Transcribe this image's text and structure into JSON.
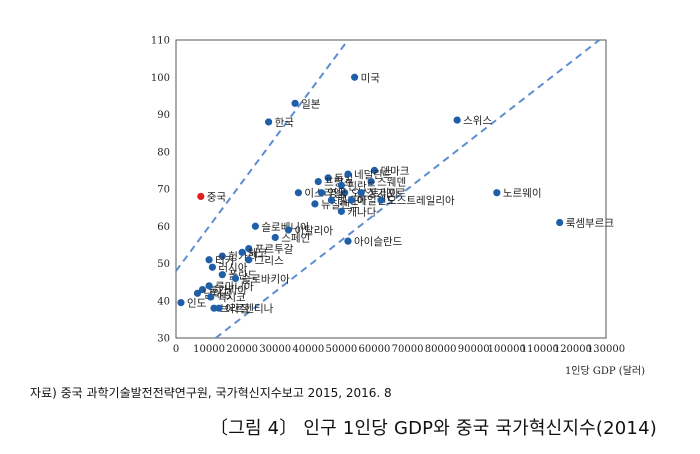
{
  "chart_data": {
    "type": "scatter",
    "xlabel": "1인당 GDP (달러)",
    "ylabel": "",
    "xlim": [
      0,
      130000
    ],
    "ylim": [
      30,
      110
    ],
    "x_ticks": [
      0,
      10000,
      20000,
      30000,
      40000,
      50000,
      60000,
      70000,
      80000,
      90000,
      100000,
      110000,
      120000,
      130000
    ],
    "y_ticks": [
      30,
      40,
      50,
      60,
      70,
      80,
      90,
      100,
      110
    ],
    "highlight_color": "#e02020",
    "point_color": "#1f5fa8",
    "trend_color": "#5b8fd0",
    "trend_lines": [
      {
        "x": [
          0,
          52000
        ],
        "y": [
          48,
          110
        ]
      },
      {
        "x": [
          12000,
          128000
        ],
        "y": [
          30,
          110
        ]
      }
    ],
    "points": [
      {
        "label": "미국",
        "x": 54000,
        "y": 100
      },
      {
        "label": "일본",
        "x": 36000,
        "y": 93
      },
      {
        "label": "한국",
        "x": 28000,
        "y": 88
      },
      {
        "label": "스위스",
        "x": 85000,
        "y": 88.5
      },
      {
        "label": "노르웨이",
        "x": 97000,
        "y": 69
      },
      {
        "label": "룩셈부르크",
        "x": 116000,
        "y": 61
      },
      {
        "label": "중국",
        "x": 7500,
        "y": 68,
        "highlight": true
      },
      {
        "label": "덴마크",
        "x": 60000,
        "y": 75
      },
      {
        "label": "독일",
        "x": 46000,
        "y": 73
      },
      {
        "label": "네덜란드",
        "x": 52000,
        "y": 74
      },
      {
        "label": "프랑스",
        "x": 43000,
        "y": 72
      },
      {
        "label": "스웨덴",
        "x": 59000,
        "y": 72
      },
      {
        "label": "핀란드",
        "x": 50000,
        "y": 71
      },
      {
        "label": "오스트리아",
        "x": 51000,
        "y": 69
      },
      {
        "label": "싱가포르",
        "x": 56000,
        "y": 69
      },
      {
        "label": "이스라엘",
        "x": 37000,
        "y": 69
      },
      {
        "label": "영국",
        "x": 44000,
        "y": 69
      },
      {
        "label": "뉴질랜드",
        "x": 42000,
        "y": 66
      },
      {
        "label": "벨기에",
        "x": 47000,
        "y": 67
      },
      {
        "label": "아일랜드",
        "x": 53000,
        "y": 67
      },
      {
        "label": "오스트레일리아",
        "x": 62000,
        "y": 67
      },
      {
        "label": "캐나다",
        "x": 50000,
        "y": 64
      },
      {
        "label": "슬로베니아",
        "x": 24000,
        "y": 60
      },
      {
        "label": "이탈리아",
        "x": 34000,
        "y": 59
      },
      {
        "label": "스페인",
        "x": 30000,
        "y": 57
      },
      {
        "label": "아이슬란드",
        "x": 52000,
        "y": 56
      },
      {
        "label": "포르투갈",
        "x": 22000,
        "y": 54
      },
      {
        "label": "헝가리",
        "x": 14000,
        "y": 52
      },
      {
        "label": "터키",
        "x": 10000,
        "y": 51
      },
      {
        "label": "체코",
        "x": 20000,
        "y": 53
      },
      {
        "label": "러시아",
        "x": 11000,
        "y": 49
      },
      {
        "label": "그리스",
        "x": 22000,
        "y": 51
      },
      {
        "label": "폴란드",
        "x": 14000,
        "y": 47
      },
      {
        "label": "불가리아",
        "x": 8000,
        "y": 43
      },
      {
        "label": "루마니아",
        "x": 10000,
        "y": 44
      },
      {
        "label": "슬로바키아",
        "x": 18000,
        "y": 46
      },
      {
        "label": "남아공",
        "x": 6500,
        "y": 42
      },
      {
        "label": "멕시코",
        "x": 10500,
        "y": 41
      },
      {
        "label": "인도",
        "x": 1500,
        "y": 39.5
      },
      {
        "label": "브라질",
        "x": 11500,
        "y": 38
      },
      {
        "label": "아르헨티나",
        "x": 13000,
        "y": 38
      }
    ]
  },
  "source_note": "자료) 중국 과학기술발전전략연구원, 국가혁신지수보고 2015, 2016. 8",
  "caption": "〔그림 4〕 인구 1인당 GDP와 중국 국가혁신지수(2014)"
}
